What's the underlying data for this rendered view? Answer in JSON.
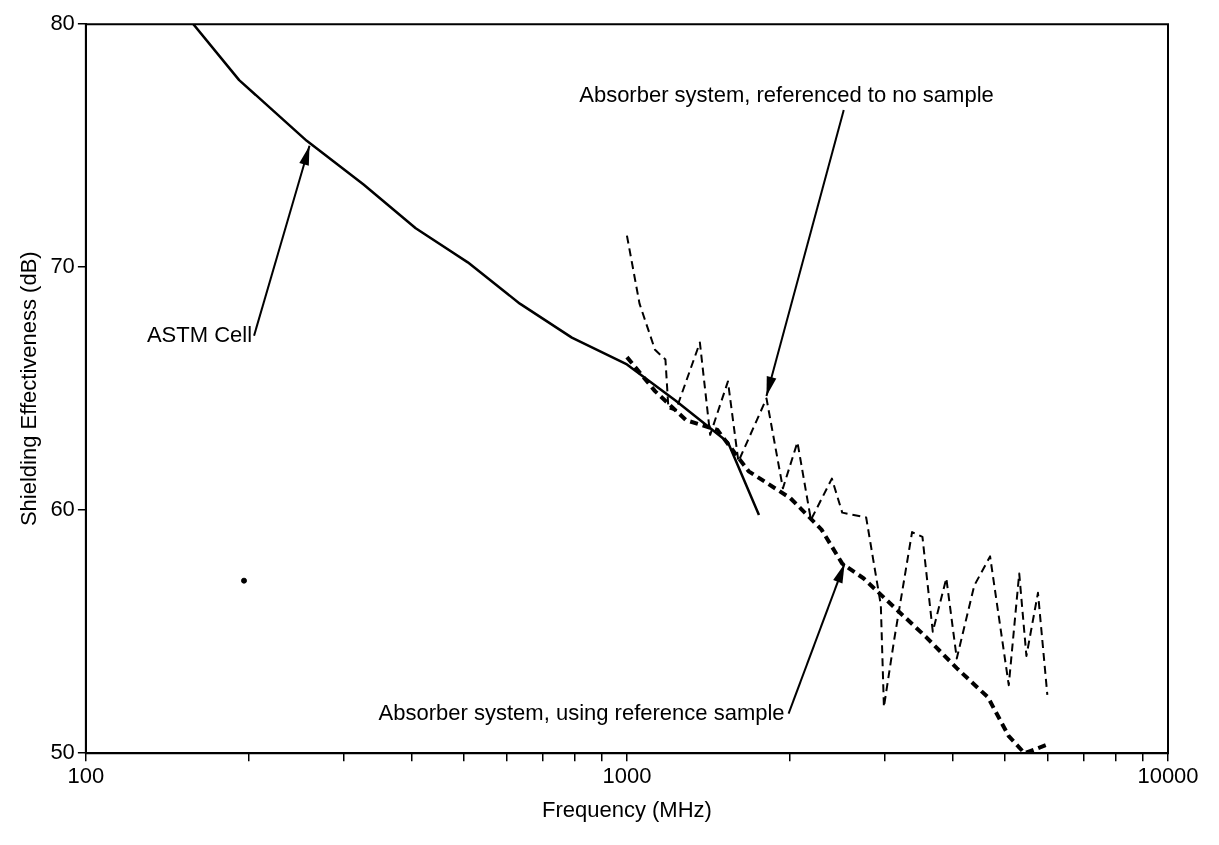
{
  "chart_data": {
    "type": "line",
    "xlabel": "Frequency (MHz)",
    "ylabel": "Shielding Effectiveness (dB)",
    "log": "x",
    "grid": false,
    "legend": false,
    "marker": "none",
    "xlim": [
      100,
      10000
    ],
    "ylim": [
      50,
      80
    ],
    "xticks": [
      100,
      {
        "value": 200,
        "label": null
      },
      {
        "value": 300,
        "label": null
      },
      {
        "value": 400,
        "label": null
      },
      {
        "value": 500,
        "label": null
      },
      {
        "value": 600,
        "label": null
      },
      {
        "value": 700,
        "label": null
      },
      {
        "value": 800,
        "label": null
      },
      {
        "value": 900,
        "label": null
      },
      1000,
      {
        "value": 2000,
        "label": null
      },
      {
        "value": 3000,
        "label": null
      },
      {
        "value": 4000,
        "label": null
      },
      {
        "value": 5000,
        "label": null
      },
      {
        "value": 6000,
        "label": null
      },
      {
        "value": 7000,
        "label": null
      },
      {
        "value": 8000,
        "label": null
      },
      {
        "value": 9000,
        "label": null
      },
      10000
    ],
    "yticks": [
      50,
      60,
      70,
      80
    ],
    "series": [
      {
        "color": "#000000",
        "line_style": "solid",
        "x": [
          158,
          192,
          256,
          326,
          407,
          508,
          634,
          791,
          1000,
          1231,
          1537,
          1754
        ],
        "values": [
          80,
          77.7,
          75.2,
          73.4,
          71.6,
          70.2,
          68.5,
          67.1,
          66.0,
          64.5,
          62.8,
          59.8
        ]
      },
      {
        "color": "#000000",
        "line_style": "dashed",
        "x": [
          1000,
          1055,
          1127,
          1178,
          1193,
          1231,
          1364,
          1425,
          1537,
          1607,
          1811,
          1942,
          2066,
          2188,
          2392,
          2500,
          2768,
          2946,
          2985,
          3120,
          3365,
          3517,
          3675,
          3893,
          4070,
          4385,
          4690,
          5078,
          5309,
          5474,
          5750,
          5984
        ],
        "values": [
          71.3,
          68.5,
          66.6,
          66.2,
          64.2,
          64.1,
          66.9,
          63.1,
          65.3,
          62.0,
          64.6,
          60.9,
          62.8,
          59.6,
          61.3,
          59.9,
          59.7,
          56.1,
          51.9,
          54.7,
          59.1,
          58.9,
          55.0,
          57.2,
          53.9,
          56.9,
          58.1,
          52.8,
          57.4,
          54.0,
          56.6,
          52.4
        ]
      },
      {
        "color": "#000000",
        "line_style": "dashed",
        "x": [
          1000,
          1127,
          1287,
          1470,
          1679,
          2004,
          2289,
          2500,
          2736,
          3120,
          3565,
          4070,
          4648,
          5078,
          5430,
          6063
        ],
        "values": [
          66.3,
          64.9,
          63.7,
          63.3,
          61.6,
          60.5,
          59.2,
          57.8,
          57.2,
          56.0,
          54.8,
          53.5,
          52.3,
          50.7,
          50.0,
          50.4
        ]
      },
      {
        "type": "scatter",
        "color": "#000000",
        "marker": "circle",
        "x": [
          196
        ],
        "values": [
          57.1
        ]
      }
    ],
    "annotations": [
      {
        "text": "ASTM Cell",
        "x": 259,
        "y": 75
      },
      {
        "text": "Absorber system, referenced to no sample",
        "x": 1811,
        "y": 64.7
      },
      {
        "text": "Absorber system, using reference sample",
        "x": 2525,
        "y": 57.8
      }
    ]
  }
}
